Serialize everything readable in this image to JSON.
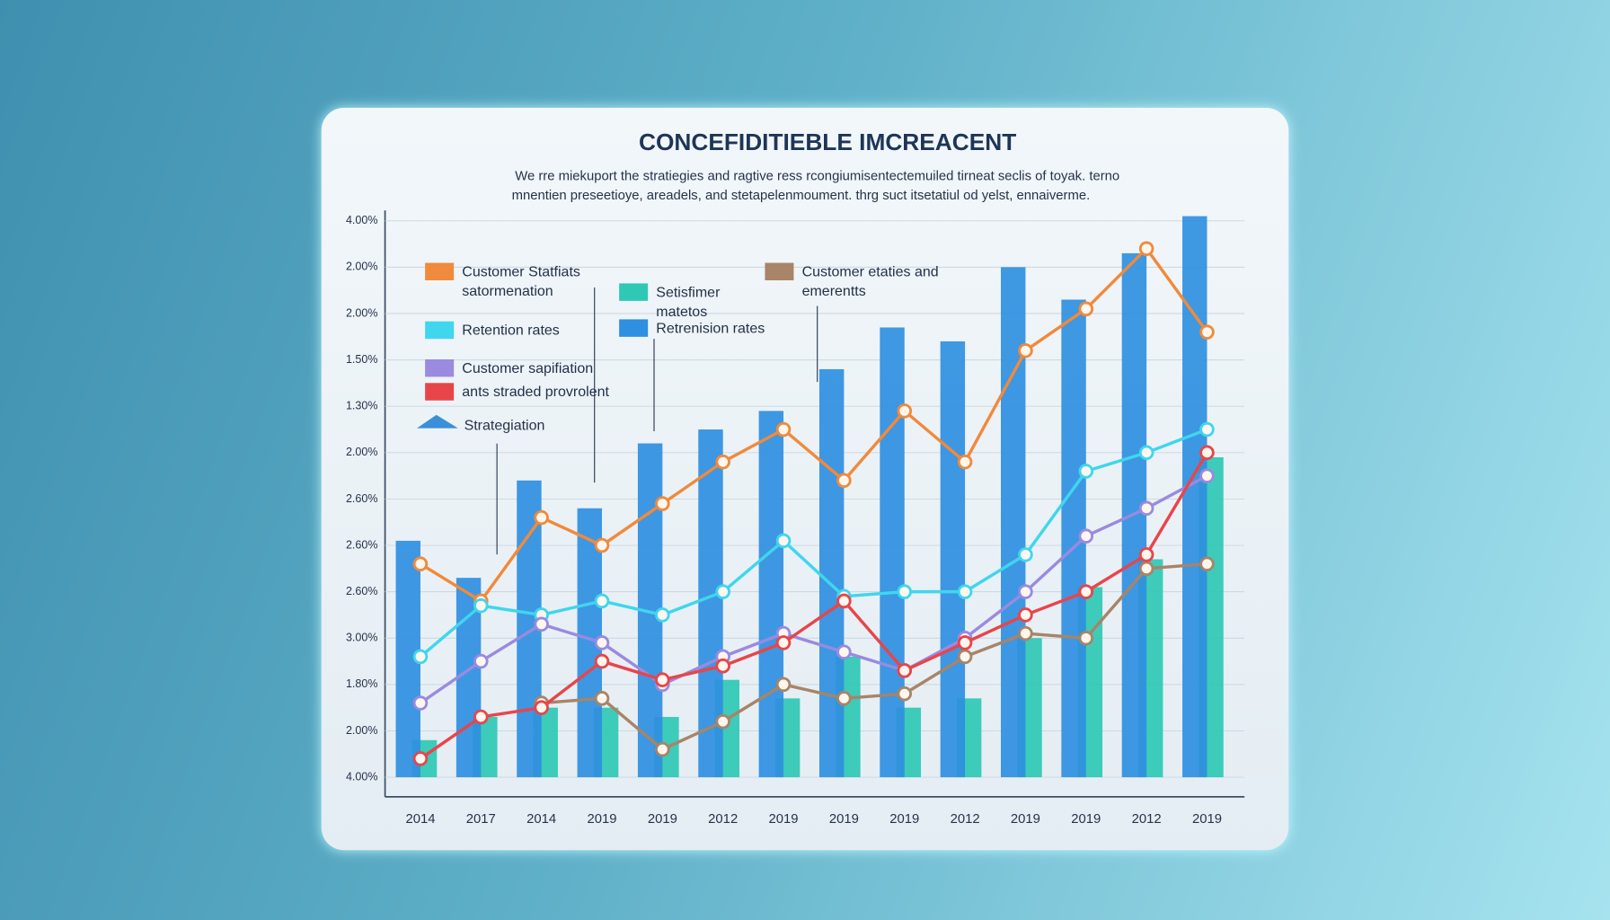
{
  "chart_data": {
    "type": "bar-line",
    "title": "CONCEFIDITIEBLE IMCREACENT",
    "subtitle": [
      "We rre miekuport the stratiegies and ragtive ress rcongiumisentectemuiled tirneat seclis of toyak. terno",
      "mnentien preseetioye, areadels, and stetapelenmoument.  thrg suct itsetatiul od yelst, ennaiverme."
    ],
    "annotations": [
      "Strategiation"
    ],
    "categories": [
      "2014",
      "2017",
      "2014",
      "2019",
      "2019",
      "2012",
      "2019",
      "2019",
      "2019",
      "2012",
      "2019",
      "2019",
      "2012",
      "2019"
    ],
    "ylim": [
      -0.4,
      12.4
    ],
    "yticks": [
      {
        "value": 0,
        "label": "4.00%"
      },
      {
        "value": 1,
        "label": "2.00%"
      },
      {
        "value": 2,
        "label": "1.80%"
      },
      {
        "value": 3,
        "label": "3.00%"
      },
      {
        "value": 4,
        "label": "2.60%"
      },
      {
        "value": 5,
        "label": "2.60%"
      },
      {
        "value": 6,
        "label": "2.60%"
      },
      {
        "value": 7,
        "label": "2.00%"
      },
      {
        "value": 8,
        "label": "1.30%"
      },
      {
        "value": 9,
        "label": "1.50%"
      },
      {
        "value": 10,
        "label": "2.00%"
      },
      {
        "value": 11,
        "label": "2.00%"
      },
      {
        "value": 12,
        "label": "4.00%"
      }
    ],
    "grid": true,
    "series": [
      {
        "name": "Customer Statfiats satormenation",
        "kind": "line",
        "color": "#f08a3c",
        "values": [
          4.6,
          3.8,
          5.6,
          5.0,
          5.9,
          6.8,
          7.5,
          6.4,
          7.9,
          6.8,
          9.2,
          10.1,
          11.4,
          9.6
        ]
      },
      {
        "name": "Setisfimer matetos",
        "kind": "bar",
        "color": "#2fc8b4",
        "values": [
          0.8,
          1.3,
          1.5,
          1.5,
          1.3,
          2.1,
          1.7,
          2.6,
          1.5,
          1.7,
          3.0,
          4.1,
          4.7,
          6.9
        ]
      },
      {
        "name": "Customer etaties and emerentts",
        "kind": "line",
        "color": "#a88468",
        "values": [
          null,
          null,
          1.6,
          1.7,
          0.6,
          1.2,
          2.0,
          1.7,
          1.8,
          2.6,
          3.1,
          3.0,
          4.5,
          4.6
        ]
      },
      {
        "name": "Retention rates",
        "kind": "line",
        "color": "#3fd6ee",
        "values": [
          2.6,
          3.7,
          3.5,
          3.8,
          3.5,
          4.0,
          5.1,
          3.9,
          4.0,
          4.0,
          4.8,
          6.6,
          7.0,
          7.5
        ]
      },
      {
        "name": "Retrenision rates",
        "kind": "bar",
        "color": "#2f8fe0",
        "values": [
          5.1,
          4.3,
          6.4,
          5.8,
          7.2,
          7.5,
          7.9,
          8.8,
          9.7,
          9.4,
          11.0,
          10.3,
          11.3,
          12.1
        ]
      },
      {
        "name": "Customer sapifiation",
        "kind": "line",
        "color": "#9a8ae0",
        "values": [
          1.6,
          2.5,
          3.3,
          2.9,
          2.0,
          2.6,
          3.1,
          2.7,
          2.3,
          3.0,
          4.0,
          5.2,
          5.8,
          6.5
        ]
      },
      {
        "name": "ants straded provrolent",
        "kind": "line",
        "color": "#e8454a",
        "values": [
          0.4,
          1.3,
          1.5,
          2.5,
          2.1,
          2.4,
          2.9,
          3.8,
          2.3,
          2.9,
          3.5,
          4.0,
          4.8,
          7.0
        ]
      }
    ]
  }
}
